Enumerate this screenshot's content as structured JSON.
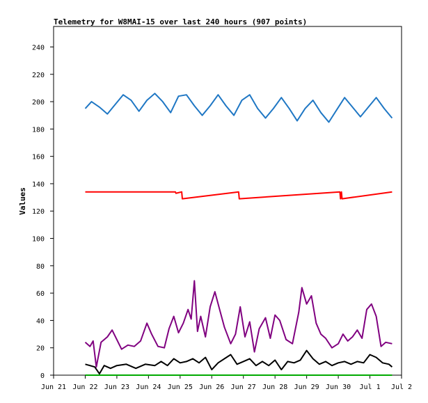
{
  "chart_data": {
    "type": "line",
    "title": "Telemetry for W8MAI-15 over last 240 hours (907 points)",
    "xlabel": "",
    "ylabel": "Values",
    "ylim": [
      0,
      255
    ],
    "yticks": [
      0,
      20,
      40,
      60,
      80,
      100,
      120,
      140,
      160,
      180,
      200,
      220,
      240
    ],
    "xlim": [
      "Jun 21",
      "Jul 2"
    ],
    "xticks": [
      "Jun 21",
      "Jun 22",
      "Jun 23",
      "Jun 24",
      "Jun 25",
      "Jun 26",
      "Jun 27",
      "Jun 28",
      "Jun 29",
      "Jun 30",
      "Jul 1",
      "Jul 2"
    ],
    "grid": false,
    "legend": "none",
    "series": [
      {
        "color": "#1f77c4",
        "x": [
          22.0,
          22.2,
          22.45,
          22.7,
          22.95,
          23.2,
          23.45,
          23.7,
          23.95,
          24.2,
          24.45,
          24.7,
          24.95,
          25.2,
          25.45,
          25.7,
          25.95,
          26.2,
          26.45,
          26.7,
          26.95,
          27.2,
          27.45,
          27.7,
          27.95,
          28.2,
          28.45,
          28.7,
          28.95,
          29.2,
          29.45,
          29.7,
          29.95,
          30.2,
          30.45,
          30.7,
          30.95,
          31.2,
          31.45,
          31.7
        ],
        "y": [
          195,
          200,
          196,
          191,
          198,
          205,
          201,
          193,
          201,
          206,
          200,
          192,
          204,
          205,
          197,
          190,
          197,
          205,
          197,
          190,
          201,
          205,
          195,
          188,
          195,
          203,
          195,
          186,
          195,
          201,
          192,
          185,
          194,
          203,
          196,
          189,
          196,
          203,
          195,
          188
        ]
      },
      {
        "color": "#ff0000",
        "x": [
          22.0,
          24.85,
          24.87,
          25.05,
          25.07,
          26.85,
          26.87,
          30.05,
          30.07,
          30.1,
          30.12,
          31.7
        ],
        "y": [
          134,
          134,
          133,
          134,
          129,
          134,
          129,
          134,
          129,
          134,
          129,
          134
        ]
      },
      {
        "color": "#800080",
        "x": [
          22.0,
          22.15,
          22.25,
          22.35,
          22.5,
          22.7,
          22.85,
          23.0,
          23.15,
          23.35,
          23.55,
          23.75,
          23.95,
          24.1,
          24.3,
          24.5,
          24.65,
          24.8,
          24.95,
          25.1,
          25.25,
          25.35,
          25.45,
          25.55,
          25.65,
          25.8,
          25.95,
          26.1,
          26.25,
          26.4,
          26.6,
          26.75,
          26.9,
          27.05,
          27.2,
          27.35,
          27.5,
          27.7,
          27.85,
          28.0,
          28.15,
          28.35,
          28.55,
          28.75,
          28.85,
          29.0,
          29.15,
          29.3,
          29.45,
          29.6,
          29.8,
          30.0,
          30.15,
          30.3,
          30.45,
          30.6,
          30.75,
          30.9,
          31.05,
          31.2,
          31.35,
          31.5,
          31.7
        ],
        "y": [
          24,
          21,
          25,
          6,
          24,
          28,
          33,
          26,
          19,
          22,
          21,
          25,
          38,
          30,
          21,
          20,
          34,
          43,
          31,
          38,
          48,
          41,
          69,
          32,
          43,
          28,
          50,
          61,
          48,
          35,
          23,
          30,
          50,
          28,
          39,
          17,
          34,
          42,
          27,
          44,
          40,
          26,
          23,
          46,
          64,
          52,
          58,
          38,
          30,
          27,
          20,
          23,
          30,
          25,
          28,
          33,
          27,
          48,
          52,
          43,
          21,
          24,
          23
        ]
      },
      {
        "color": "#000000",
        "x": [
          22.0,
          22.3,
          22.45,
          22.6,
          22.8,
          23.0,
          23.3,
          23.6,
          23.9,
          24.2,
          24.4,
          24.6,
          24.8,
          25.0,
          25.2,
          25.4,
          25.6,
          25.8,
          26.0,
          26.2,
          26.4,
          26.6,
          26.8,
          27.0,
          27.2,
          27.4,
          27.6,
          27.8,
          28.0,
          28.2,
          28.4,
          28.6,
          28.8,
          29.0,
          29.2,
          29.4,
          29.6,
          29.8,
          30.0,
          30.2,
          30.4,
          30.6,
          30.8,
          31.0,
          31.2,
          31.4,
          31.6,
          31.7
        ],
        "y": [
          8,
          6,
          1,
          7,
          5,
          7,
          8,
          5,
          8,
          7,
          10,
          7,
          12,
          9,
          10,
          12,
          9,
          13,
          4,
          9,
          12,
          15,
          8,
          10,
          12,
          7,
          10,
          7,
          11,
          4,
          10,
          9,
          11,
          18,
          12,
          8,
          10,
          7,
          9,
          10,
          8,
          10,
          9,
          15,
          13,
          9,
          8,
          6
        ]
      },
      {
        "color": "#00aa00",
        "x": [
          22.0,
          31.7
        ],
        "y": [
          0,
          0
        ]
      }
    ]
  }
}
